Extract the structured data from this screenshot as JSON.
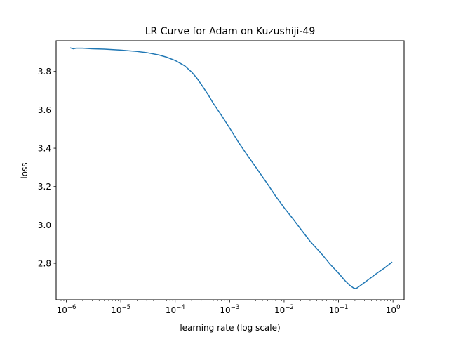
{
  "chart_data": {
    "type": "line",
    "title": "LR Curve for Adam on Kuzushiji-49",
    "xlabel": "learning rate (log scale)",
    "ylabel": "loss",
    "xscale": "log",
    "xlim": [
      6.5e-07,
      1.6
    ],
    "ylim": [
      2.61,
      3.96
    ],
    "grid": false,
    "color": "#1f77b4",
    "x_ticks": [
      {
        "value": 1e-06,
        "base": "10",
        "exp": "−6"
      },
      {
        "value": 1e-05,
        "base": "10",
        "exp": "−5"
      },
      {
        "value": 0.0001,
        "base": "10",
        "exp": "−4"
      },
      {
        "value": 0.001,
        "base": "10",
        "exp": "−3"
      },
      {
        "value": 0.01,
        "base": "10",
        "exp": "−2"
      },
      {
        "value": 0.1,
        "base": "10",
        "exp": "−1"
      },
      {
        "value": 1,
        "base": "10",
        "exp": "0"
      }
    ],
    "y_ticks": [
      {
        "value": 2.8,
        "label": "2.8"
      },
      {
        "value": 3.0,
        "label": "3.0"
      },
      {
        "value": 3.2,
        "label": "3.2"
      },
      {
        "value": 3.4,
        "label": "3.4"
      },
      {
        "value": 3.6,
        "label": "3.6"
      },
      {
        "value": 3.8,
        "label": "3.8"
      }
    ],
    "series": [
      {
        "x": [
          1.2e-06,
          1.35e-06,
          1.5e-06,
          2e-06,
          3e-06,
          5e-06,
          1e-05,
          2e-05,
          3e-05,
          5e-05,
          7e-05,
          0.0001,
          0.00015,
          0.0002,
          0.00025,
          0.0003,
          0.0004,
          0.0005,
          0.0007,
          0.001,
          0.0015,
          0.002,
          0.003,
          0.005,
          0.007,
          0.01,
          0.015,
          0.02,
          0.03,
          0.05,
          0.07,
          0.1,
          0.13,
          0.16,
          0.19,
          0.21,
          0.3,
          0.5,
          0.7,
          0.95
        ],
        "y": [
          3.922,
          3.918,
          3.921,
          3.921,
          3.918,
          3.916,
          3.911,
          3.904,
          3.898,
          3.886,
          3.874,
          3.857,
          3.829,
          3.797,
          3.765,
          3.733,
          3.68,
          3.634,
          3.573,
          3.505,
          3.425,
          3.373,
          3.302,
          3.212,
          3.15,
          3.09,
          3.027,
          2.98,
          2.915,
          2.846,
          2.795,
          2.749,
          2.711,
          2.686,
          2.671,
          2.668,
          2.7,
          2.747,
          2.776,
          2.805
        ]
      }
    ]
  }
}
